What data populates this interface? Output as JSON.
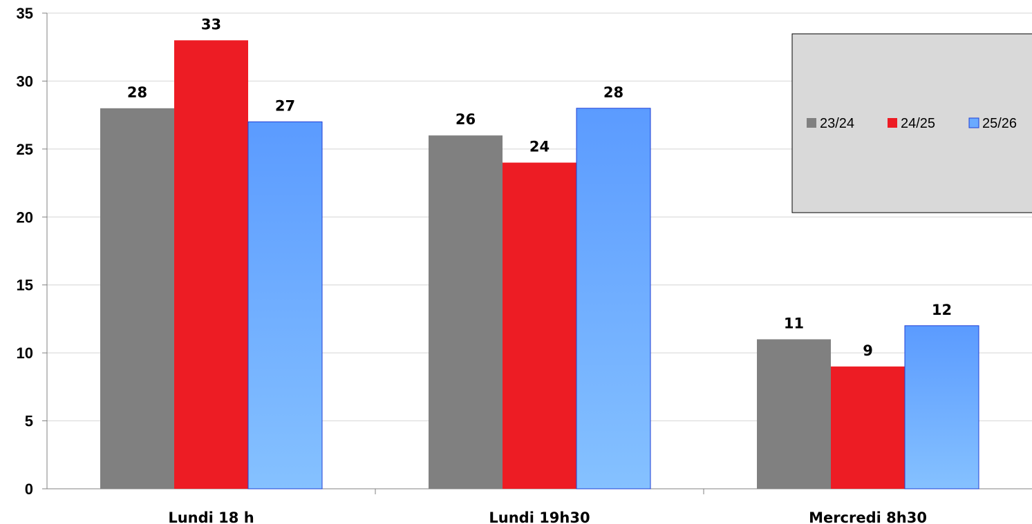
{
  "chart_data": {
    "type": "bar",
    "categories": [
      "Lundi 18 h",
      "Lundi 19h30",
      "Mercredi 8h30"
    ],
    "series": [
      {
        "name": "23/24",
        "values": [
          28,
          26,
          11
        ],
        "color": "#808080"
      },
      {
        "name": "24/25",
        "values": [
          33,
          24,
          9
        ],
        "color": "#ed1c24"
      },
      {
        "name": "25/26",
        "values": [
          27,
          28,
          12
        ],
        "color": "#5b9bff"
      }
    ],
    "ylim": [
      0,
      35
    ],
    "yticks": [
      0,
      5,
      10,
      15,
      20,
      25,
      30,
      35
    ],
    "grid": true,
    "legend": "top-right",
    "title": "",
    "xlabel": "",
    "ylabel": ""
  }
}
